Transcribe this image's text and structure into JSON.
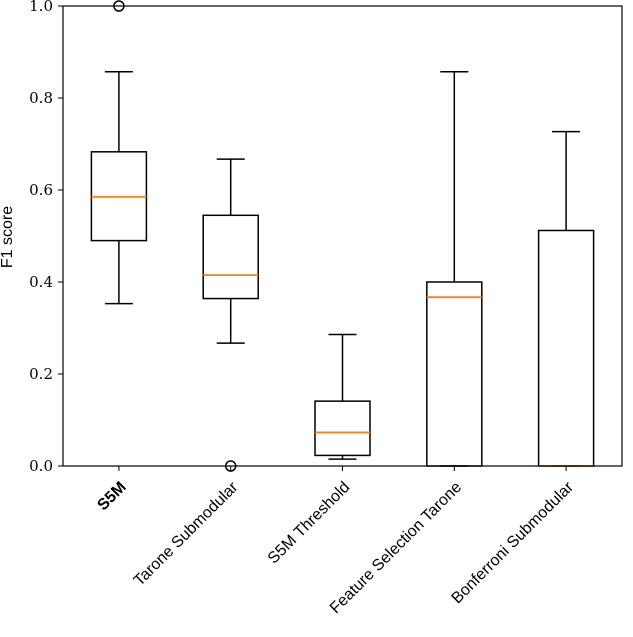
{
  "chart_data": {
    "type": "boxplot",
    "title": "",
    "xlabel": "",
    "ylabel": "F1 score",
    "ylim": [
      0.0,
      1.0
    ],
    "yticks": [
      0.0,
      0.2,
      0.4,
      0.6,
      0.8,
      1.0
    ],
    "ytick_labels": [
      "0.0",
      "0.2",
      "0.4",
      "0.6",
      "0.8",
      "1.0"
    ],
    "grid": false,
    "colors": {
      "box": "#000000",
      "median": "#ff7f0e",
      "whisker": "#000000"
    },
    "categories": [
      "S5M",
      "Tarone Submodular",
      "S5M Threshold",
      "Feature Selection Tarone",
      "Bonferroni Submodular"
    ],
    "bold_categories": [
      "S5M"
    ],
    "boxes": [
      {
        "name": "S5M",
        "whislo": 0.353,
        "q1": 0.49,
        "med": 0.585,
        "q3": 0.683,
        "whishi": 0.857,
        "fliers": [
          1.0
        ]
      },
      {
        "name": "Tarone Submodular",
        "whislo": 0.267,
        "q1": 0.364,
        "med": 0.415,
        "q3": 0.545,
        "whishi": 0.667,
        "fliers": [
          0.0
        ]
      },
      {
        "name": "S5M Threshold",
        "whislo": 0.015,
        "q1": 0.023,
        "med": 0.073,
        "q3": 0.141,
        "whishi": 0.286,
        "fliers": []
      },
      {
        "name": "Feature Selection Tarone",
        "whislo": 0.0,
        "q1": 0.0,
        "med": 0.367,
        "q3": 0.4,
        "whishi": 0.857,
        "fliers": []
      },
      {
        "name": "Bonferroni Submodular",
        "whislo": 0.0,
        "q1": 0.0,
        "med": 0.0,
        "q3": 0.512,
        "whishi": 0.727,
        "fliers": []
      }
    ]
  }
}
